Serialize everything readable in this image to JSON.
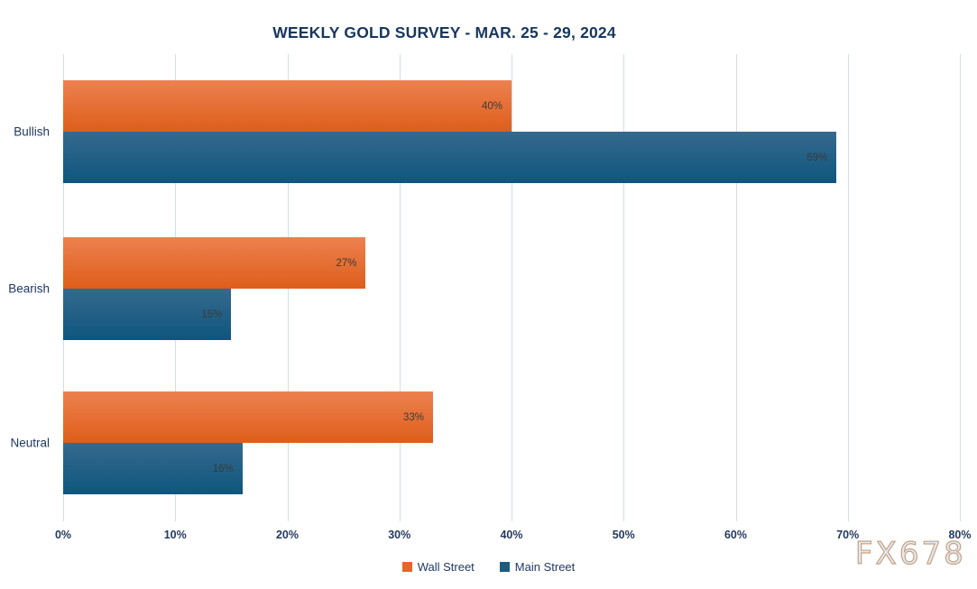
{
  "watermark": "FX678",
  "chart_data": {
    "type": "bar",
    "orientation": "horizontal",
    "title": "WEEKLY GOLD SURVEY - MAR. 25 - 29, 2024",
    "categories": [
      "Bullish",
      "Bearish",
      "Neutral"
    ],
    "series": [
      {
        "name": "Wall Street",
        "color": "#E8652A",
        "gradient_top": "#ED8150",
        "gradient_bottom": "#DE5E1A",
        "values": [
          40,
          27,
          33
        ]
      },
      {
        "name": "Main Street",
        "color": "#1D5B80",
        "gradient_top": "#36698E",
        "gradient_bottom": "#0E567D",
        "values": [
          69,
          15,
          16
        ]
      }
    ],
    "value_suffix": "%",
    "x_ticks": [
      "0%",
      "10%",
      "20%",
      "30%",
      "40%",
      "50%",
      "60%",
      "70%",
      "80%"
    ],
    "xlim": [
      0,
      80
    ],
    "grid": "vertical",
    "legend_position": "bottom",
    "colors": {
      "background": "#FFFFFF",
      "title": "#17375E",
      "axis_text": "#243A5E",
      "category_text": "#1F3864",
      "bar_label_text": "#3A3A3A",
      "gridline": "#CFDEEE",
      "watermark_fill": "#E3ECF6",
      "watermark_stroke": "#C9A283"
    }
  }
}
